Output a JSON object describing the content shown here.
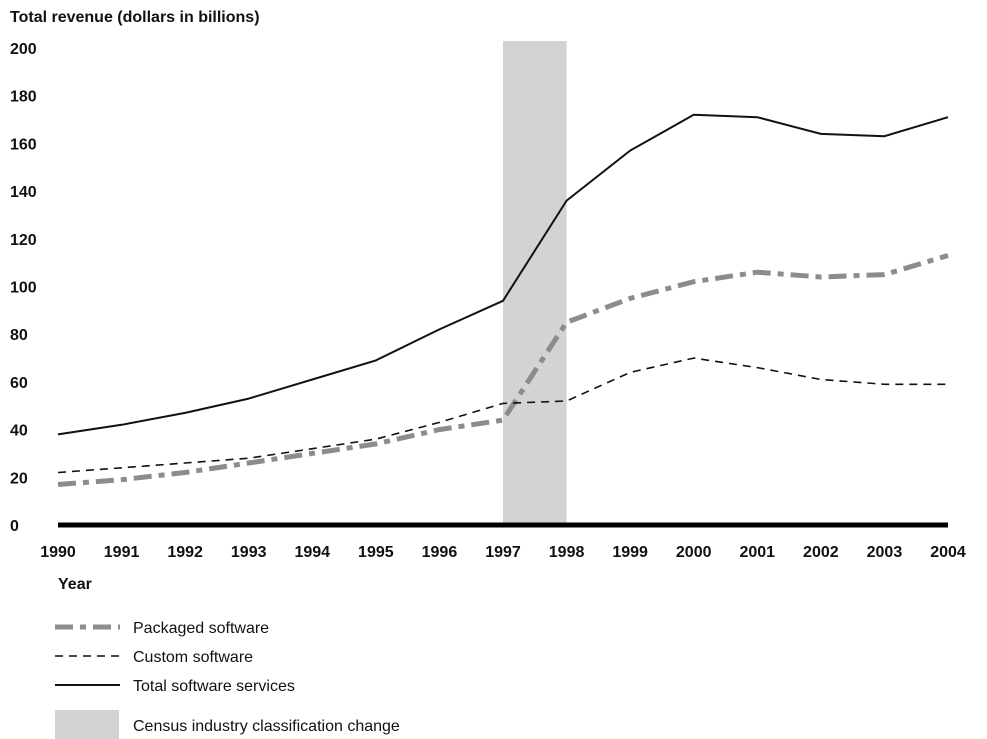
{
  "chart_data": {
    "type": "line",
    "ylabel": "Total revenue (dollars in billions)",
    "xlabel": "Year",
    "ylim": [
      0,
      200
    ],
    "yticks": [
      0,
      20,
      40,
      60,
      80,
      100,
      120,
      140,
      160,
      180,
      200
    ],
    "x": [
      1990,
      1991,
      1992,
      1993,
      1994,
      1995,
      1996,
      1997,
      1998,
      1999,
      2000,
      2001,
      2002,
      2003,
      2004
    ],
    "series": [
      {
        "name": "Packaged software",
        "color": "#8c8c8c",
        "style": "dash-dot-thick",
        "values": [
          17,
          19,
          22,
          26,
          30,
          34,
          40,
          44,
          85,
          95,
          102,
          106,
          104,
          105,
          113
        ]
      },
      {
        "name": "Custom software",
        "color": "#111111",
        "style": "dashed",
        "values": [
          22,
          24,
          26,
          28,
          32,
          36,
          43,
          51,
          52,
          64,
          70,
          66,
          61,
          59,
          59
        ]
      },
      {
        "name": "Total software services",
        "color": "#111111",
        "style": "solid",
        "values": [
          38,
          42,
          47,
          53,
          61,
          69,
          82,
          94,
          136,
          157,
          172,
          171,
          164,
          163,
          171
        ]
      }
    ],
    "shaded_region": {
      "from": 1997,
      "to": 1998,
      "color": "#d2d3d5",
      "label": "Census industry classification change"
    },
    "legend_placement": "bottom-left",
    "grid": false
  }
}
